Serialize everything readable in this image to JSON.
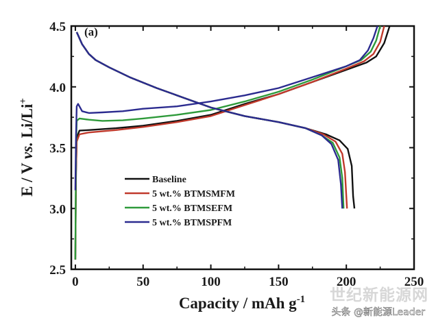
{
  "chart_data": {
    "type": "line",
    "panel_label": "(a)",
    "xlabel": "Capacity / mAh g-1",
    "xlabel_main": "Capacity / mAh g",
    "xlabel_sup": "-1",
    "ylabel_parts": {
      "pre": "E / V ",
      "vs": "vs.",
      "post": " Li/Li",
      "sup": "+"
    },
    "xlim": [
      -3,
      250
    ],
    "ylim": [
      2.5,
      4.5
    ],
    "xticks": [
      0,
      50,
      100,
      150,
      200,
      250
    ],
    "yticks": [
      2.5,
      3.0,
      3.5,
      4.0,
      4.5
    ],
    "ytick_labels": [
      "2.5",
      "3.0",
      "3.5",
      "4.0",
      "4.5"
    ],
    "legend_position": "lower-left",
    "series": [
      {
        "name": "Baseline",
        "color": "#111111",
        "charge": [
          [
            0,
            2.58
          ],
          [
            0.5,
            3.3
          ],
          [
            1,
            3.58
          ],
          [
            3,
            3.64
          ],
          [
            10,
            3.645
          ],
          [
            30,
            3.66
          ],
          [
            50,
            3.68
          ],
          [
            75,
            3.72
          ],
          [
            100,
            3.77
          ],
          [
            125,
            3.86
          ],
          [
            150,
            3.94
          ],
          [
            175,
            4.04
          ],
          [
            200,
            4.14
          ],
          [
            215,
            4.2
          ],
          [
            222,
            4.25
          ],
          [
            228,
            4.36
          ],
          [
            232,
            4.5
          ]
        ],
        "discharge": [
          [
            1,
            4.45
          ],
          [
            5,
            4.35
          ],
          [
            10,
            4.27
          ],
          [
            15,
            4.22
          ],
          [
            25,
            4.16
          ],
          [
            40,
            4.08
          ],
          [
            60,
            3.99
          ],
          [
            80,
            3.91
          ],
          [
            100,
            3.83
          ],
          [
            125,
            3.76
          ],
          [
            150,
            3.71
          ],
          [
            170,
            3.66
          ],
          [
            185,
            3.61
          ],
          [
            195,
            3.56
          ],
          [
            201,
            3.49
          ],
          [
            204,
            3.35
          ],
          [
            205,
            3.1
          ],
          [
            206,
            3.0
          ]
        ]
      },
      {
        "name": "5 wt.% BTMSMFM",
        "color": "#c0392b",
        "charge": [
          [
            0,
            2.58
          ],
          [
            0.5,
            3.3
          ],
          [
            1,
            3.55
          ],
          [
            3,
            3.61
          ],
          [
            10,
            3.625
          ],
          [
            30,
            3.645
          ],
          [
            50,
            3.67
          ],
          [
            75,
            3.71
          ],
          [
            100,
            3.76
          ],
          [
            125,
            3.85
          ],
          [
            150,
            3.94
          ],
          [
            175,
            4.04
          ],
          [
            200,
            4.15
          ],
          [
            213,
            4.21
          ],
          [
            220,
            4.27
          ],
          [
            225,
            4.37
          ],
          [
            228,
            4.5
          ]
        ],
        "discharge": [
          [
            1,
            4.45
          ],
          [
            5,
            4.35
          ],
          [
            10,
            4.27
          ],
          [
            15,
            4.22
          ],
          [
            25,
            4.16
          ],
          [
            40,
            4.08
          ],
          [
            60,
            3.99
          ],
          [
            80,
            3.91
          ],
          [
            100,
            3.83
          ],
          [
            125,
            3.76
          ],
          [
            150,
            3.71
          ],
          [
            170,
            3.66
          ],
          [
            183,
            3.61
          ],
          [
            192,
            3.55
          ],
          [
            197,
            3.45
          ],
          [
            199,
            3.3
          ],
          [
            200,
            3.1
          ],
          [
            200.5,
            3.0
          ]
        ]
      },
      {
        "name": "5 wt.% BTMSEFM",
        "color": "#2e9a3a",
        "charge": [
          [
            0,
            2.58
          ],
          [
            0.5,
            3.5
          ],
          [
            1,
            3.72
          ],
          [
            3,
            3.74
          ],
          [
            10,
            3.73
          ],
          [
            20,
            3.72
          ],
          [
            35,
            3.725
          ],
          [
            50,
            3.74
          ],
          [
            75,
            3.77
          ],
          [
            100,
            3.81
          ],
          [
            125,
            3.88
          ],
          [
            150,
            3.96
          ],
          [
            175,
            4.06
          ],
          [
            200,
            4.17
          ],
          [
            211,
            4.22
          ],
          [
            218,
            4.29
          ],
          [
            222,
            4.38
          ],
          [
            225,
            4.5
          ]
        ],
        "discharge": [
          [
            1,
            4.45
          ],
          [
            5,
            4.35
          ],
          [
            10,
            4.27
          ],
          [
            15,
            4.22
          ],
          [
            25,
            4.16
          ],
          [
            40,
            4.08
          ],
          [
            60,
            3.99
          ],
          [
            80,
            3.91
          ],
          [
            100,
            3.83
          ],
          [
            125,
            3.76
          ],
          [
            150,
            3.71
          ],
          [
            170,
            3.66
          ],
          [
            182,
            3.6
          ],
          [
            190,
            3.54
          ],
          [
            195,
            3.42
          ],
          [
            197,
            3.25
          ],
          [
            198,
            3.0
          ]
        ]
      },
      {
        "name": "5 wt.% BTMSPFM",
        "color": "#2b2b8f",
        "charge": [
          [
            0,
            3.15
          ],
          [
            0.5,
            3.6
          ],
          [
            1,
            3.84
          ],
          [
            2,
            3.86
          ],
          [
            5,
            3.8
          ],
          [
            10,
            3.785
          ],
          [
            20,
            3.79
          ],
          [
            35,
            3.8
          ],
          [
            50,
            3.82
          ],
          [
            75,
            3.84
          ],
          [
            100,
            3.88
          ],
          [
            125,
            3.93
          ],
          [
            150,
            3.99
          ],
          [
            175,
            4.08
          ],
          [
            200,
            4.17
          ],
          [
            210,
            4.22
          ],
          [
            216,
            4.3
          ],
          [
            220,
            4.4
          ],
          [
            223,
            4.5
          ]
        ],
        "discharge": [
          [
            1,
            4.45
          ],
          [
            5,
            4.35
          ],
          [
            10,
            4.27
          ],
          [
            15,
            4.22
          ],
          [
            25,
            4.16
          ],
          [
            40,
            4.08
          ],
          [
            60,
            3.99
          ],
          [
            80,
            3.91
          ],
          [
            100,
            3.83
          ],
          [
            125,
            3.76
          ],
          [
            150,
            3.71
          ],
          [
            170,
            3.66
          ],
          [
            182,
            3.6
          ],
          [
            189,
            3.53
          ],
          [
            194,
            3.4
          ],
          [
            196,
            3.2
          ],
          [
            197,
            3.0
          ]
        ]
      }
    ]
  },
  "watermark": {
    "big": "世纪新能源网",
    "small": "头条 @新能源Leader",
    "big_color": "#c9c9c9"
  }
}
